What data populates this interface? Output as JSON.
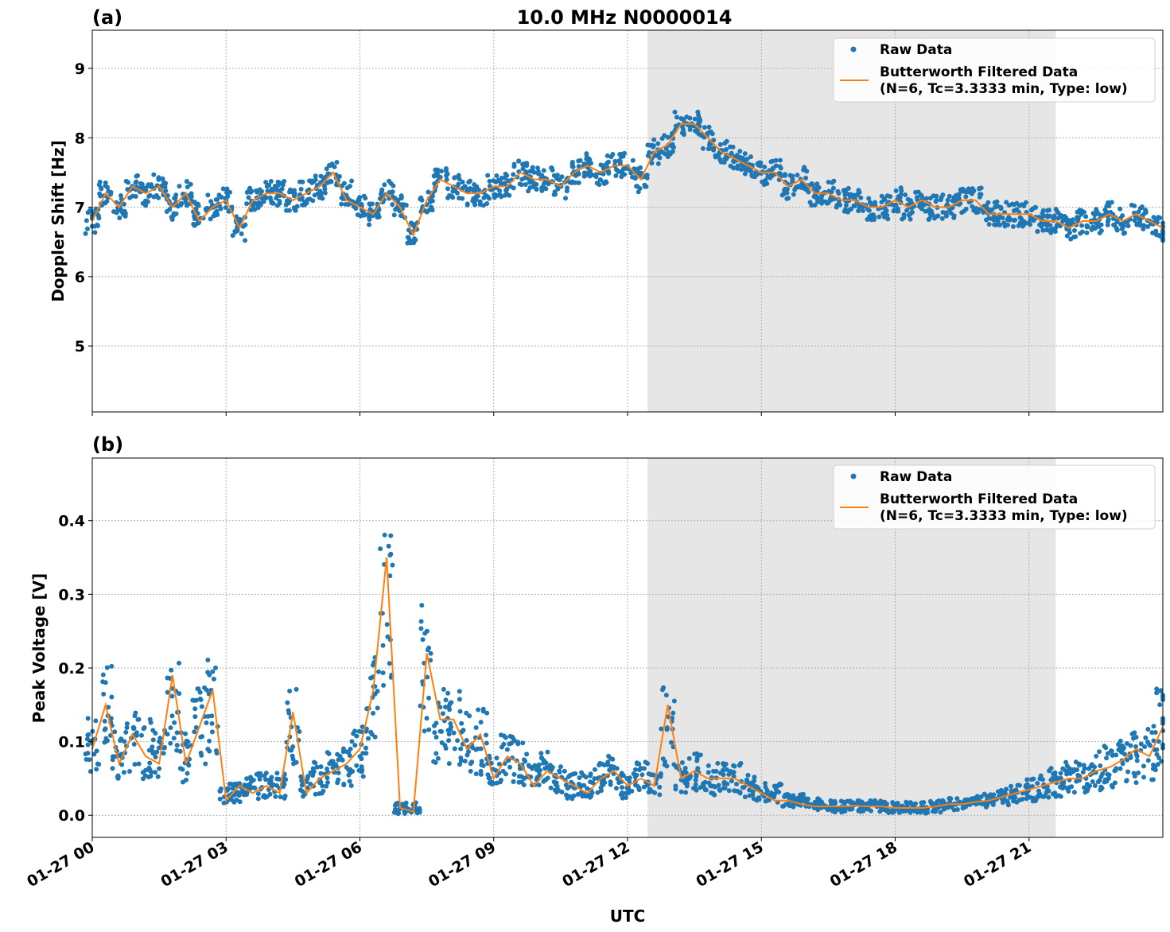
{
  "figure": {
    "title": "10.0 MHz N0000014",
    "xlabel": "UTC",
    "x_tick_labels": [
      "01-27 00",
      "01-27 03",
      "01-27 06",
      "01-27 09",
      "01-27 12",
      "01-27 15",
      "01-27 18",
      "01-27 21"
    ],
    "legend": {
      "raw_label": "Raw Data",
      "filtered_label_line1": "Butterworth Filtered Data",
      "filtered_label_line2": "(N=6, Tc=3.3333 min, Type: low)"
    },
    "colors": {
      "raw": "#1f77b4",
      "filtered": "#ff7f0e",
      "shade": "#e6e6e6"
    }
  },
  "chart_data": [
    {
      "type": "scatter",
      "panel_label": "(a)",
      "ylabel": "Doppler Shift [Hz]",
      "y_ticks": [
        5,
        6,
        7,
        8,
        9
      ],
      "xlim": [
        0,
        24
      ],
      "ylim": [
        4.05,
        9.55
      ],
      "shaded_region": [
        12.45,
        21.6
      ],
      "grid": true,
      "legend_position": "upper right",
      "series": [
        {
          "name": "Raw Data",
          "style": "points",
          "x": [
            0,
            0.3,
            0.6,
            0.9,
            1.2,
            1.5,
            1.8,
            2.1,
            2.4,
            2.7,
            3.0,
            3.3,
            3.6,
            3.9,
            4.2,
            4.5,
            4.8,
            5.1,
            5.4,
            5.7,
            6.0,
            6.3,
            6.6,
            6.9,
            7.2,
            7.5,
            7.8,
            8.1,
            8.4,
            8.7,
            9.0,
            9.3,
            9.6,
            9.9,
            10.2,
            10.5,
            10.8,
            11.1,
            11.4,
            11.7,
            12.0,
            12.3,
            12.6,
            12.9,
            13.2,
            13.5,
            13.8,
            14.1,
            14.4,
            14.7,
            15.0,
            15.3,
            15.6,
            15.9,
            16.2,
            16.5,
            16.8,
            17.1,
            17.4,
            17.7,
            18.0,
            18.3,
            18.6,
            18.9,
            19.2,
            19.5,
            19.8,
            20.1,
            20.4,
            20.7,
            21.0,
            21.3,
            21.6,
            21.9,
            22.2,
            22.5,
            22.8,
            23.1,
            23.4,
            23.7,
            24.0
          ],
          "y": [
            6.8,
            7.2,
            7.0,
            7.3,
            7.2,
            7.3,
            7.0,
            7.2,
            6.9,
            7.0,
            7.1,
            6.7,
            7.1,
            7.2,
            7.2,
            7.1,
            7.2,
            7.3,
            7.5,
            7.2,
            7.0,
            6.9,
            7.2,
            7.0,
            6.6,
            7.1,
            7.4,
            7.3,
            7.2,
            7.2,
            7.3,
            7.3,
            7.5,
            7.4,
            7.4,
            7.3,
            7.5,
            7.6,
            7.5,
            7.6,
            7.6,
            7.4,
            7.8,
            7.9,
            8.2,
            8.2,
            8.0,
            7.8,
            7.7,
            7.6,
            7.5,
            7.5,
            7.3,
            7.4,
            7.2,
            7.2,
            7.1,
            7.1,
            7.0,
            7.0,
            7.1,
            7.0,
            7.1,
            7.0,
            7.0,
            7.1,
            7.1,
            6.9,
            6.9,
            6.9,
            6.9,
            6.8,
            6.8,
            6.7,
            6.8,
            6.8,
            6.9,
            6.8,
            6.9,
            6.8,
            6.7
          ]
        },
        {
          "name": "Butterworth Filtered Data",
          "style": "line",
          "x": [
            0,
            0.3,
            0.6,
            0.9,
            1.2,
            1.5,
            1.8,
            2.1,
            2.4,
            2.7,
            3.0,
            3.3,
            3.6,
            3.9,
            4.2,
            4.5,
            4.8,
            5.1,
            5.4,
            5.7,
            6.0,
            6.3,
            6.6,
            6.9,
            7.2,
            7.5,
            7.8,
            8.1,
            8.4,
            8.7,
            9.0,
            9.3,
            9.6,
            9.9,
            10.2,
            10.5,
            10.8,
            11.1,
            11.4,
            11.7,
            12.0,
            12.3,
            12.6,
            12.9,
            13.2,
            13.5,
            13.8,
            14.1,
            14.4,
            14.7,
            15.0,
            15.3,
            15.6,
            15.9,
            16.2,
            16.5,
            16.8,
            17.1,
            17.4,
            17.7,
            18.0,
            18.3,
            18.6,
            18.9,
            19.2,
            19.5,
            19.8,
            20.1,
            20.4,
            20.7,
            21.0,
            21.3,
            21.6,
            21.9,
            22.2,
            22.5,
            22.8,
            23.1,
            23.4,
            23.7,
            24.0
          ],
          "y": [
            6.8,
            7.2,
            7.0,
            7.3,
            7.2,
            7.3,
            7.0,
            7.2,
            6.8,
            7.0,
            7.1,
            6.7,
            7.1,
            7.2,
            7.2,
            7.1,
            7.2,
            7.3,
            7.5,
            7.1,
            7.0,
            6.9,
            7.2,
            7.0,
            6.6,
            7.1,
            7.4,
            7.3,
            7.2,
            7.2,
            7.3,
            7.3,
            7.5,
            7.4,
            7.4,
            7.3,
            7.5,
            7.6,
            7.5,
            7.6,
            7.6,
            7.4,
            7.8,
            7.9,
            8.2,
            8.2,
            8.0,
            7.8,
            7.7,
            7.6,
            7.5,
            7.5,
            7.3,
            7.4,
            7.2,
            7.2,
            7.1,
            7.1,
            7.0,
            7.0,
            7.1,
            7.0,
            7.1,
            7.0,
            7.0,
            7.1,
            7.1,
            6.9,
            6.9,
            6.9,
            6.9,
            6.8,
            6.8,
            6.7,
            6.8,
            6.8,
            6.9,
            6.8,
            6.9,
            6.8,
            6.7
          ]
        }
      ]
    },
    {
      "type": "scatter",
      "panel_label": "(b)",
      "ylabel": "Peak Voltage [V]",
      "y_ticks": [
        0.0,
        0.1,
        0.2,
        0.3,
        0.4
      ],
      "xlim": [
        0,
        24
      ],
      "ylim": [
        -0.03,
        0.485
      ],
      "shaded_region": [
        12.45,
        21.6
      ],
      "grid": true,
      "legend_position": "upper right",
      "series": [
        {
          "name": "Raw Data",
          "style": "points",
          "x": [
            0,
            0.3,
            0.6,
            0.9,
            1.2,
            1.5,
            1.8,
            2.1,
            2.4,
            2.7,
            3.0,
            3.3,
            3.6,
            3.9,
            4.2,
            4.5,
            4.8,
            5.1,
            5.4,
            5.7,
            6.0,
            6.3,
            6.6,
            6.9,
            7.2,
            7.5,
            7.8,
            8.1,
            8.4,
            8.7,
            9.0,
            9.3,
            9.6,
            9.9,
            10.2,
            10.5,
            10.8,
            11.1,
            11.4,
            11.7,
            12.0,
            12.3,
            12.6,
            12.9,
            13.2,
            13.5,
            13.8,
            14.1,
            14.4,
            14.7,
            15.0,
            15.3,
            15.6,
            15.9,
            16.2,
            16.5,
            16.8,
            17.1,
            17.4,
            17.7,
            18.0,
            18.3,
            18.6,
            18.9,
            19.2,
            19.5,
            19.8,
            20.1,
            20.4,
            20.7,
            21.0,
            21.3,
            21.6,
            21.9,
            22.2,
            22.5,
            22.8,
            23.1,
            23.4,
            23.7,
            24.0
          ],
          "y": [
            0.1,
            0.14,
            0.08,
            0.1,
            0.09,
            0.08,
            0.15,
            0.08,
            0.12,
            0.15,
            0.03,
            0.03,
            0.04,
            0.04,
            0.04,
            0.12,
            0.04,
            0.05,
            0.06,
            0.07,
            0.09,
            0.15,
            0.3,
            0.01,
            0.01,
            0.2,
            0.12,
            0.12,
            0.1,
            0.1,
            0.06,
            0.08,
            0.07,
            0.05,
            0.06,
            0.05,
            0.04,
            0.04,
            0.05,
            0.06,
            0.04,
            0.05,
            0.04,
            0.12,
            0.05,
            0.06,
            0.05,
            0.05,
            0.05,
            0.04,
            0.03,
            0.03,
            0.02,
            0.02,
            0.015,
            0.013,
            0.012,
            0.013,
            0.012,
            0.012,
            0.01,
            0.01,
            0.01,
            0.012,
            0.015,
            0.015,
            0.018,
            0.02,
            0.025,
            0.03,
            0.035,
            0.04,
            0.045,
            0.05,
            0.05,
            0.06,
            0.065,
            0.075,
            0.08,
            0.085,
            0.12
          ]
        },
        {
          "name": "Butterworth Filtered Data",
          "style": "line",
          "x": [
            0,
            0.3,
            0.6,
            0.9,
            1.2,
            1.5,
            1.8,
            2.1,
            2.4,
            2.7,
            3.0,
            3.3,
            3.6,
            3.9,
            4.2,
            4.5,
            4.8,
            5.1,
            5.4,
            5.7,
            6.0,
            6.3,
            6.6,
            6.9,
            7.2,
            7.5,
            7.8,
            8.1,
            8.4,
            8.7,
            9.0,
            9.3,
            9.6,
            9.9,
            10.2,
            10.5,
            10.8,
            11.1,
            11.4,
            11.7,
            12.0,
            12.3,
            12.6,
            12.9,
            13.2,
            13.5,
            13.8,
            14.1,
            14.4,
            14.7,
            15.0,
            15.3,
            15.6,
            15.9,
            16.2,
            16.5,
            16.8,
            17.1,
            17.4,
            17.7,
            18.0,
            18.3,
            18.6,
            18.9,
            19.2,
            19.5,
            19.8,
            20.1,
            20.4,
            20.7,
            21.0,
            21.3,
            21.6,
            21.9,
            22.2,
            22.5,
            22.8,
            23.1,
            23.4,
            23.7,
            24.0
          ],
          "y": [
            0.09,
            0.15,
            0.07,
            0.11,
            0.08,
            0.07,
            0.19,
            0.07,
            0.12,
            0.17,
            0.02,
            0.04,
            0.03,
            0.04,
            0.03,
            0.14,
            0.03,
            0.05,
            0.06,
            0.07,
            0.09,
            0.17,
            0.35,
            0.01,
            0.005,
            0.22,
            0.13,
            0.13,
            0.09,
            0.11,
            0.05,
            0.08,
            0.07,
            0.04,
            0.06,
            0.05,
            0.04,
            0.03,
            0.05,
            0.06,
            0.04,
            0.05,
            0.04,
            0.15,
            0.05,
            0.06,
            0.05,
            0.05,
            0.05,
            0.04,
            0.03,
            0.02,
            0.02,
            0.015,
            0.012,
            0.012,
            0.012,
            0.013,
            0.012,
            0.012,
            0.01,
            0.01,
            0.01,
            0.012,
            0.015,
            0.015,
            0.018,
            0.02,
            0.025,
            0.03,
            0.035,
            0.04,
            0.045,
            0.05,
            0.05,
            0.06,
            0.065,
            0.075,
            0.09,
            0.08,
            0.12
          ]
        }
      ]
    }
  ]
}
